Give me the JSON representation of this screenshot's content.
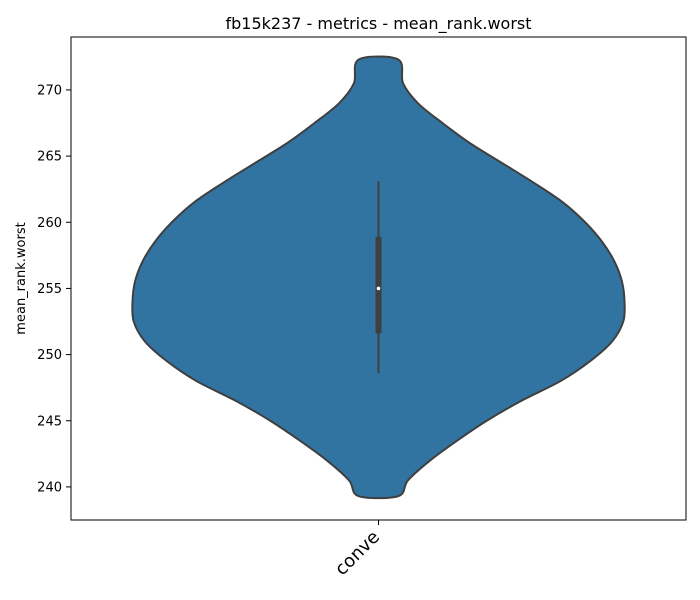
{
  "chart_data": {
    "type": "violin",
    "title": "fb15k237 - metrics - mean_rank.worst",
    "xlabel": "",
    "ylabel": "mean_rank.worst",
    "categories": [
      "conve"
    ],
    "ylim": [
      237.5,
      274
    ],
    "yticks": [
      240,
      245,
      250,
      255,
      260,
      265,
      270
    ],
    "grid": false,
    "colors": {
      "violin_fill": "#3274a1",
      "outline": "#3f3f3f",
      "median": "#ffffff"
    },
    "violins": [
      {
        "category": "conve",
        "median": 255,
        "q1": 251.6,
        "q3": 258.9,
        "whisker_low": 248.6,
        "whisker_high": 263.1,
        "density_profile": [
          [
            239.3,
            0.08
          ],
          [
            240.5,
            0.12
          ],
          [
            242,
            0.21
          ],
          [
            243.5,
            0.32
          ],
          [
            245,
            0.44
          ],
          [
            246.5,
            0.58
          ],
          [
            248,
            0.74
          ],
          [
            249.5,
            0.86
          ],
          [
            251,
            0.95
          ],
          [
            252.5,
            0.995
          ],
          [
            254,
            1.0
          ],
          [
            255.5,
            0.99
          ],
          [
            257,
            0.96
          ],
          [
            258.5,
            0.91
          ],
          [
            260,
            0.84
          ],
          [
            261.5,
            0.75
          ],
          [
            263,
            0.63
          ],
          [
            264.5,
            0.5
          ],
          [
            266,
            0.37
          ],
          [
            267.5,
            0.26
          ],
          [
            269,
            0.16
          ],
          [
            270.5,
            0.1
          ],
          [
            272.3,
            0.08
          ]
        ]
      }
    ]
  }
}
